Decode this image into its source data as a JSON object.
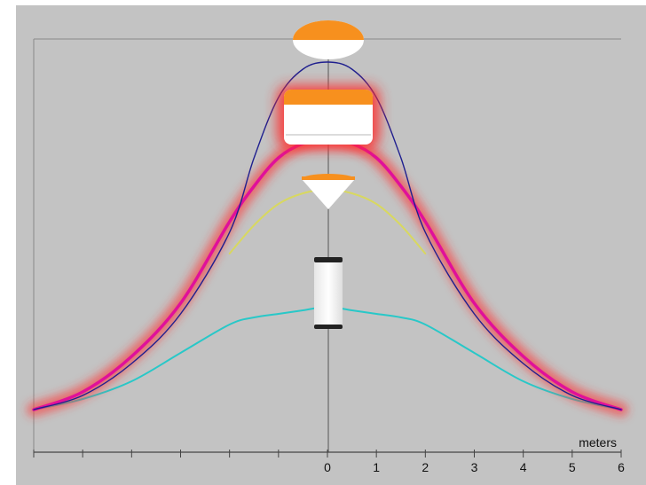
{
  "chart_data": {
    "type": "line",
    "title": "",
    "xlabel": "meters",
    "ylabel": "",
    "xlim": [
      -6,
      6
    ],
    "ylim": [
      0,
      1
    ],
    "grid": false,
    "legend": "none",
    "x_ticks": [
      -6,
      -5,
      -4,
      -3,
      -2,
      -1,
      0,
      1,
      2,
      3,
      4,
      5,
      6
    ],
    "x_tick_labels": [
      "",
      "",
      "",
      "",
      "",
      "",
      "0",
      "1",
      "2",
      "3",
      "4",
      "5",
      "6"
    ],
    "series": [
      {
        "color": "#1f1f8f",
        "x": [
          -6,
          -5,
          -4,
          -3,
          -2,
          -1.5,
          -1,
          -0.5,
          0,
          0.5,
          1,
          1.5,
          2,
          3,
          4,
          5,
          6
        ],
        "y": [
          0.02,
          0.06,
          0.15,
          0.29,
          0.52,
          0.73,
          0.9,
          0.98,
          1.0,
          0.98,
          0.9,
          0.73,
          0.52,
          0.29,
          0.15,
          0.06,
          0.02
        ]
      },
      {
        "color": "#e0109a",
        "glow": "#ff3333",
        "x": [
          -6,
          -5,
          -4,
          -3,
          -2,
          -1.5,
          -1,
          -0.5,
          0,
          0.5,
          1,
          1.5,
          2,
          3,
          4,
          5,
          6
        ],
        "y": [
          0.02,
          0.07,
          0.17,
          0.32,
          0.55,
          0.65,
          0.73,
          0.77,
          0.78,
          0.77,
          0.73,
          0.65,
          0.55,
          0.32,
          0.17,
          0.07,
          0.02
        ]
      },
      {
        "color": "#d8d860",
        "x": [
          -2,
          -1.5,
          -1,
          -0.5,
          0,
          0.5,
          1,
          1.5,
          2
        ],
        "y": [
          0.46,
          0.54,
          0.6,
          0.63,
          0.64,
          0.63,
          0.6,
          0.54,
          0.46
        ]
      },
      {
        "color": "#28c8c8",
        "x": [
          -6,
          -5,
          -4,
          -3,
          -2,
          -1.5,
          -1,
          -0.5,
          0,
          0.5,
          1,
          1.5,
          2,
          3,
          4,
          5,
          6
        ],
        "y": [
          0.02,
          0.05,
          0.1,
          0.18,
          0.26,
          0.28,
          0.29,
          0.3,
          0.31,
          0.3,
          0.29,
          0.28,
          0.26,
          0.18,
          0.1,
          0.05,
          0.02
        ]
      }
    ]
  },
  "colors": {
    "plot_background": "#c3c3c3",
    "page_background": "#ffffff",
    "axis_line": "#555555",
    "accent_orange": "#f7901e",
    "object_white": "#ffffff",
    "object_dark": "#222222"
  },
  "icons": [
    "orange-dome-object-icon",
    "orange-box-object-icon",
    "orange-cone-object-icon",
    "white-cylinder-object-icon"
  ]
}
